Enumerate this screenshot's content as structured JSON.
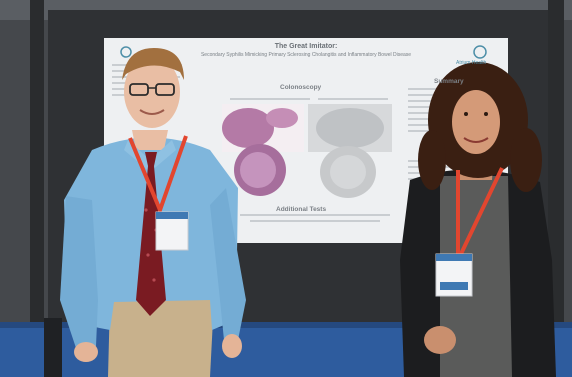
{
  "poster": {
    "title": "The Great Imitator:",
    "subtitle": "Secondary Syphilis Mimicking Primary Sclerosing Cholangitis and Inflammatory Bowel Disease",
    "section_colonoscopy": "Colonoscopy",
    "section_summary": "Summary",
    "section_additional_tests": "Additional Tests",
    "logo_text": "Atrium Health"
  },
  "colors": {
    "poster_background": "#eef0f2",
    "booth_panel": "#2f3134",
    "carpet": "#2e5c9e",
    "lanyard": "#e2462f",
    "shirt": "#7fb6dc",
    "tie": "#7a1b22"
  }
}
